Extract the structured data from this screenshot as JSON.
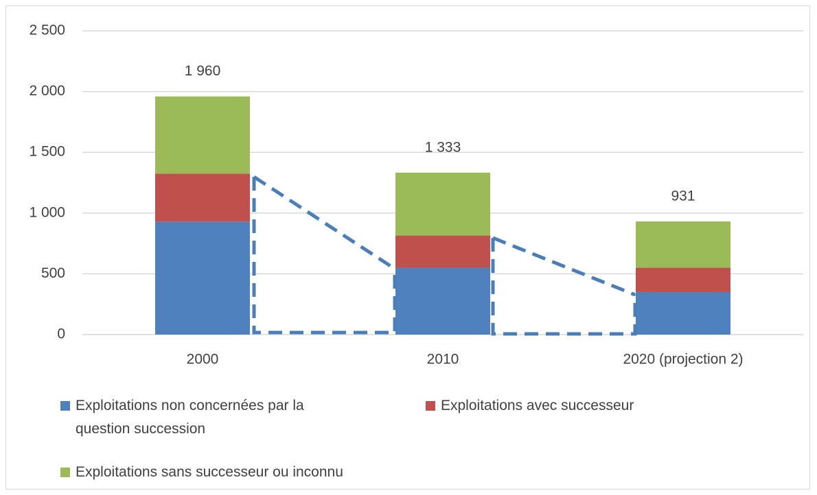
{
  "chart_data": {
    "type": "bar",
    "stacked": true,
    "categories": [
      "2000",
      "2010",
      "2020 (projection 2)"
    ],
    "series": [
      {
        "name": "Exploitations non concernées par la question succession",
        "color": "#4f81bd",
        "values": [
          930,
          550,
          350
        ]
      },
      {
        "name": "Exploitations avec successeur",
        "color": "#c0504d",
        "values": [
          395,
          265,
          200
        ]
      },
      {
        "name": "Exploitations sans successeur ou inconnu",
        "color": "#9bbb59",
        "values": [
          635,
          518,
          381
        ]
      }
    ],
    "totals": {
      "values": [
        1960,
        1333,
        931
      ],
      "value_labels": [
        "1 960",
        "1 333",
        "931"
      ]
    },
    "ylim": [
      0,
      2500
    ],
    "yticks": [
      0,
      500,
      {
        "value": 1000,
        "label": "1 000"
      },
      {
        "value": 1500,
        "label": "1 500"
      },
      {
        "value": 2000,
        "label": "2 000"
      },
      {
        "value": 2500,
        "label": "2 500"
      }
    ],
    "grid": true
  }
}
